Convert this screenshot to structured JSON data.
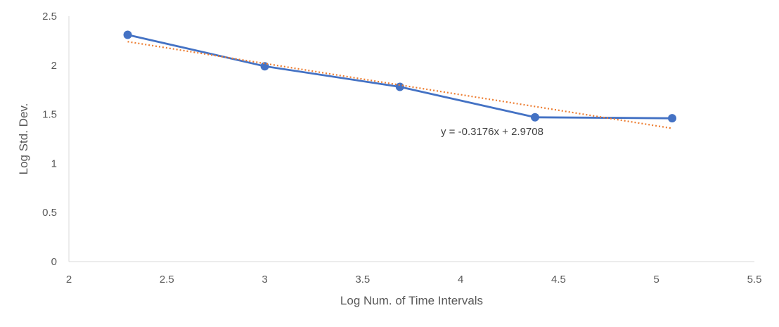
{
  "chart_data": {
    "type": "scatter",
    "xlabel": "Log Num. of Time Intervals",
    "ylabel": "Log Std. Dev.",
    "xlim": [
      2,
      5.5
    ],
    "ylim": [
      0,
      2.5
    ],
    "x_ticks": [
      "2",
      "2.5",
      "3",
      "3.5",
      "4",
      "4.5",
      "5",
      "5.5"
    ],
    "y_ticks": [
      "0",
      "0.5",
      "1",
      "1.5",
      "2",
      "2.5"
    ],
    "grid": false,
    "series": [
      {
        "points": [
          {
            "x": 2.3,
            "y": 2.31
          },
          {
            "x": 3.0,
            "y": 1.99
          },
          {
            "x": 3.69,
            "y": 1.78
          },
          {
            "x": 4.38,
            "y": 1.47
          },
          {
            "x": 5.08,
            "y": 1.46
          }
        ],
        "color": "#4472C4"
      }
    ],
    "trendline": {
      "equation": "y = -0.3176x + 2.9708",
      "slope": -0.3176,
      "intercept": 2.9708,
      "x_range": [
        2.3,
        5.08
      ],
      "color": "#ED7D31",
      "style": "dotted"
    }
  }
}
